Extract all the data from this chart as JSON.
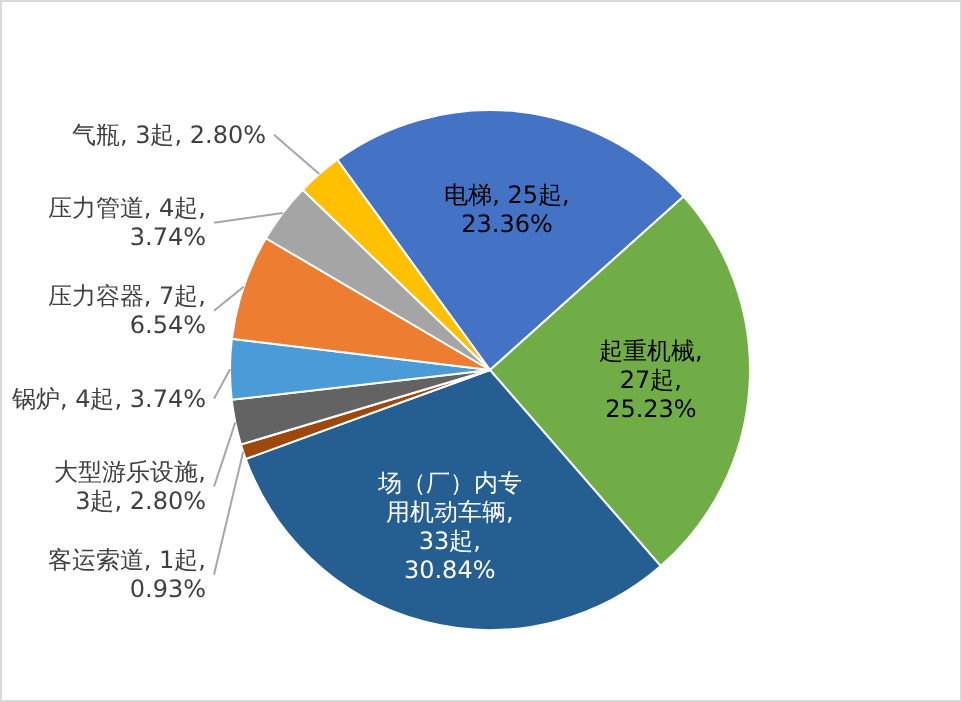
{
  "chart_data": {
    "type": "pie",
    "categories": [
      "电梯",
      "起重机械",
      "场（厂）内专用机动车辆",
      "客运索道",
      "大型游乐设施",
      "锅炉",
      "压力容器",
      "压力管道",
      "气瓶"
    ],
    "values": [
      25,
      27,
      33,
      1,
      3,
      4,
      7,
      4,
      3
    ],
    "value_labels": [
      ", 25起, 23.36%",
      ", 27起, 25.23%",
      ", 33起, 30.84%",
      ", 1起, 0.93%",
      ", 3起, 2.80%",
      ", 4起, 3.74%",
      ", 7起, 6.54%",
      ", 4起, 3.74%",
      ", 3起, 2.80%"
    ],
    "colors": [
      "#4472c4",
      "#70ad47",
      "#255e91",
      "#9e480e",
      "#636363",
      "#4a9bd8",
      "#ed7d31",
      "#a5a5a5",
      "#ffc000"
    ]
  }
}
